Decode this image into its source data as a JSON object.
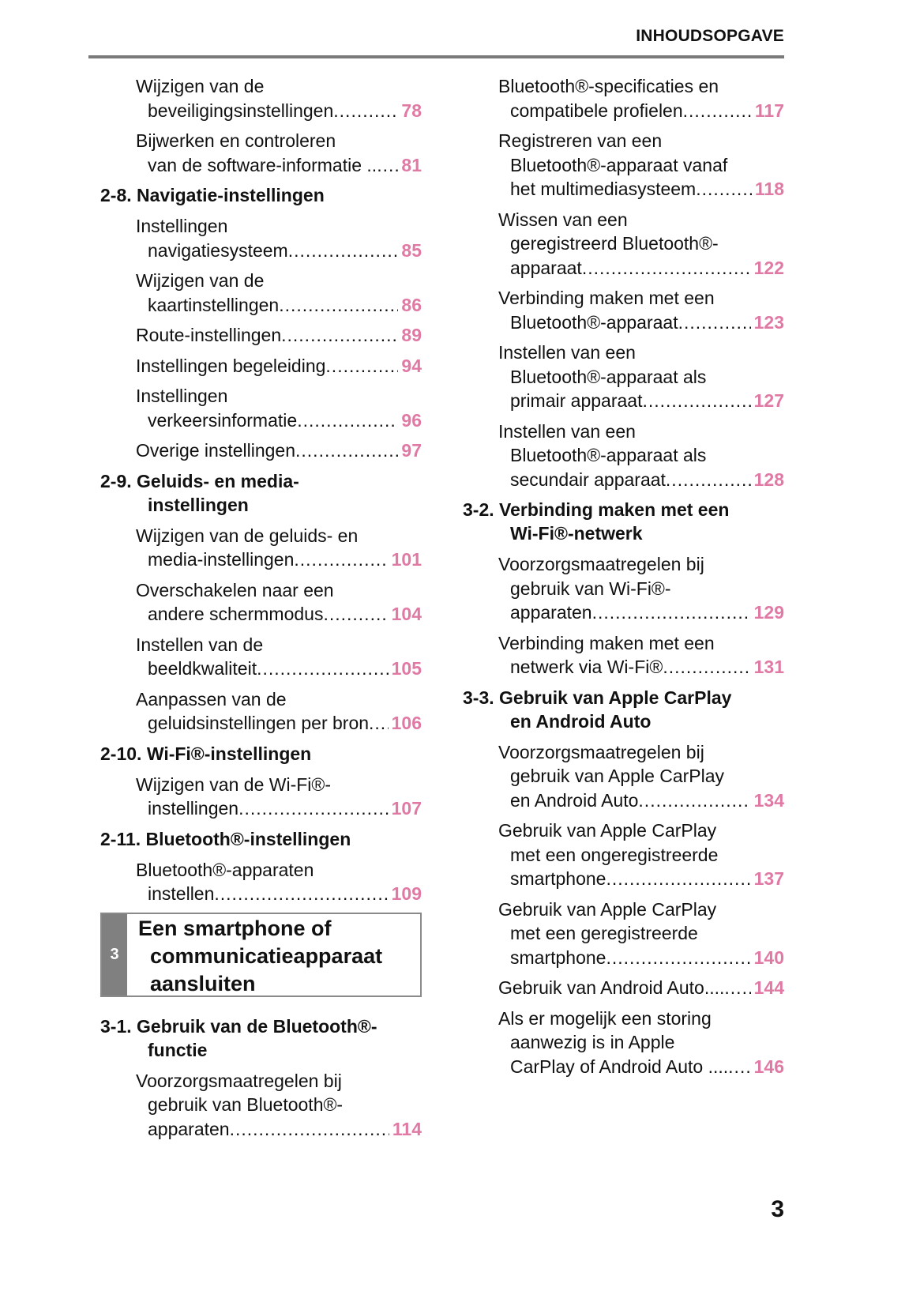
{
  "header": {
    "title": "INHOUDSOPGAVE"
  },
  "page_number": "3",
  "colors": {
    "page_ref": "#e07aa5",
    "chapter_tab": "#808080",
    "rule": "#7a7a7a"
  },
  "left": [
    {
      "type": "entry",
      "lines": [
        "Wijzigen van de",
        "beveiligingsinstellingen"
      ],
      "page": "78"
    },
    {
      "type": "entry",
      "lines": [
        "Bijwerken en controleren",
        "van de software-informatie .."
      ],
      "page": "81"
    },
    {
      "type": "heading",
      "lines": [
        "2-8. Navigatie-instellingen"
      ]
    },
    {
      "type": "entry",
      "lines": [
        "Instellingen",
        "navigatiesysteem"
      ],
      "page": "85"
    },
    {
      "type": "entry",
      "lines": [
        "Wijzigen van de",
        "kaartinstellingen"
      ],
      "page": "86"
    },
    {
      "type": "entry",
      "lines": [
        "Route-instellingen"
      ],
      "page": "89"
    },
    {
      "type": "entry",
      "lines": [
        "Instellingen begeleiding"
      ],
      "page": "94"
    },
    {
      "type": "entry",
      "lines": [
        "Instellingen",
        "verkeersinformatie"
      ],
      "page": "96"
    },
    {
      "type": "entry",
      "lines": [
        "Overige instellingen"
      ],
      "page": "97"
    },
    {
      "type": "heading",
      "lines": [
        "2-9. Geluids- en media-",
        "instellingen"
      ]
    },
    {
      "type": "entry",
      "lines": [
        "Wijzigen van de geluids- en",
        "media-instellingen"
      ],
      "page": "101"
    },
    {
      "type": "entry",
      "lines": [
        "Overschakelen naar een",
        "andere schermmodus"
      ],
      "page": "104"
    },
    {
      "type": "entry",
      "lines": [
        "Instellen van de",
        "beeldkwaliteit"
      ],
      "page": "105"
    },
    {
      "type": "entry",
      "lines": [
        "Aanpassen van de",
        "geluidsinstellingen per bron"
      ],
      "page": "106"
    },
    {
      "type": "heading",
      "lines": [
        "2-10. Wi-Fi®-instellingen"
      ]
    },
    {
      "type": "entry",
      "lines": [
        "Wijzigen van de Wi-Fi®-",
        "instellingen"
      ],
      "page": "107"
    },
    {
      "type": "heading",
      "lines": [
        "2-11. Bluetooth®-instellingen"
      ]
    },
    {
      "type": "entry",
      "lines": [
        "Bluetooth®-apparaten",
        "instellen"
      ],
      "page": "109"
    },
    {
      "type": "chapter",
      "num": "3",
      "lines": [
        "Een smartphone of",
        "communicatieapparaat",
        "aansluiten"
      ]
    },
    {
      "type": "heading",
      "lines": [
        "3-1. Gebruik van de Bluetooth®-",
        "functie"
      ]
    },
    {
      "type": "entry",
      "lines": [
        "Voorzorgsmaatregelen bij",
        "gebruik van Bluetooth®-",
        "apparaten"
      ],
      "page": "114"
    }
  ],
  "right": [
    {
      "type": "entry",
      "lines": [
        "Bluetooth®-specificaties en",
        "compatibele profielen"
      ],
      "page": "117"
    },
    {
      "type": "entry",
      "lines": [
        "Registreren van een",
        "Bluetooth®-apparaat vanaf",
        "het multimediasysteem"
      ],
      "page": "118"
    },
    {
      "type": "entry",
      "lines": [
        "Wissen van een",
        "geregistreerd Bluetooth®-",
        "apparaat"
      ],
      "page": "122"
    },
    {
      "type": "entry",
      "lines": [
        "Verbinding maken met een",
        "Bluetooth®-apparaat"
      ],
      "page": "123"
    },
    {
      "type": "entry",
      "lines": [
        "Instellen van een",
        "Bluetooth®-apparaat als",
        "primair apparaat"
      ],
      "page": "127"
    },
    {
      "type": "entry",
      "lines": [
        "Instellen van een",
        "Bluetooth®-apparaat als",
        "secundair apparaat"
      ],
      "page": "128"
    },
    {
      "type": "heading",
      "lines": [
        "3-2. Verbinding maken met een",
        "Wi-Fi®-netwerk"
      ]
    },
    {
      "type": "entry",
      "lines": [
        "Voorzorgsmaatregelen bij",
        "gebruik van Wi-Fi®-",
        "apparaten"
      ],
      "page": "129"
    },
    {
      "type": "entry",
      "lines": [
        "Verbinding maken met een",
        "netwerk via Wi-Fi®"
      ],
      "page": "131"
    },
    {
      "type": "heading",
      "lines": [
        "3-3. Gebruik van Apple CarPlay",
        "en Android Auto"
      ]
    },
    {
      "type": "entry",
      "lines": [
        "Voorzorgsmaatregelen bij",
        "gebruik van Apple CarPlay",
        "en Android Auto"
      ],
      "page": "134"
    },
    {
      "type": "entry",
      "lines": [
        "Gebruik van Apple CarPlay",
        "met een ongeregistreerde",
        "smartphone"
      ],
      "page": "137"
    },
    {
      "type": "entry",
      "lines": [
        "Gebruik van Apple CarPlay",
        "met een geregistreerde",
        "smartphone"
      ],
      "page": "140"
    },
    {
      "type": "entry",
      "lines": [
        "Gebruik van Android Auto...."
      ],
      "page": "144"
    },
    {
      "type": "entry",
      "lines": [
        "Als er mogelijk een storing",
        "aanwezig is in Apple",
        "CarPlay of Android Auto ...."
      ],
      "page": "146"
    }
  ]
}
